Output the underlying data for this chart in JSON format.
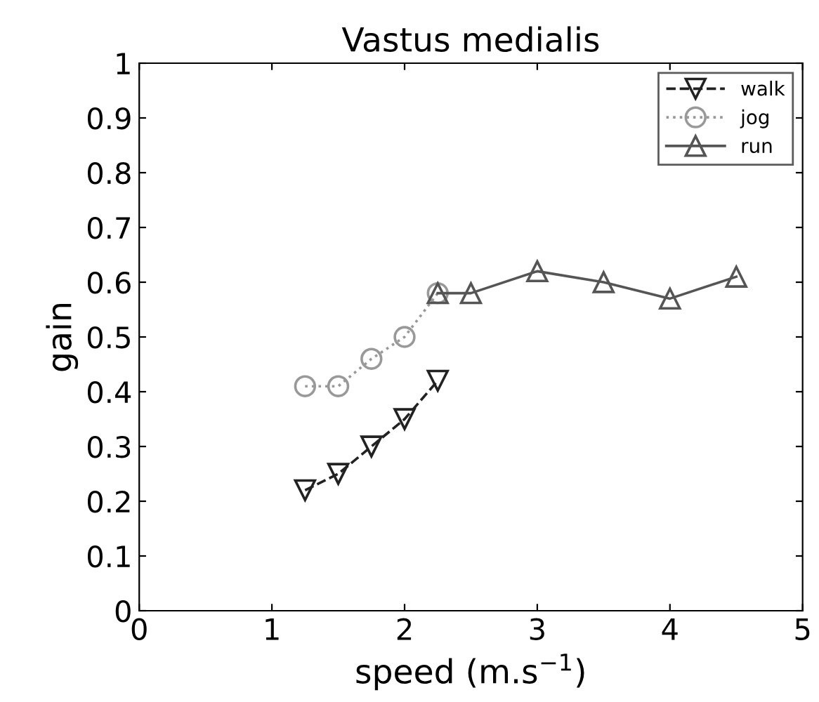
{
  "chart_data": {
    "type": "line",
    "title": "Vastus medialis",
    "xlabel": "speed (m.s$^{−1}$)",
    "ylabel": "gain",
    "xlim": [
      0,
      5
    ],
    "xticks": [
      0,
      1,
      2,
      3,
      4,
      5
    ],
    "ylim": [
      0,
      1
    ],
    "yticks": [
      0,
      0.1,
      0.2,
      0.3,
      0.4,
      0.5,
      0.6,
      0.7,
      0.8,
      0.9,
      1
    ],
    "grid": false,
    "legend": "top right",
    "series": [
      {
        "name": "walk",
        "color": "#222222",
        "marker": "triangle_down",
        "line_style": "dashed",
        "x": [
          1.25,
          1.5,
          1.75,
          2,
          2.25
        ],
        "values": [
          0.22,
          0.25,
          0.3,
          0.35,
          0.42
        ]
      },
      {
        "name": "jog",
        "color": "#999999",
        "marker": "circle",
        "line_style": "dotted",
        "x": [
          1.25,
          1.5,
          1.75,
          2,
          2.25
        ],
        "values": [
          0.41,
          0.41,
          0.46,
          0.5,
          0.58
        ]
      },
      {
        "name": "run",
        "color": "#555555",
        "marker": "triangle",
        "line_style": "solid",
        "x": [
          2.25,
          2.5,
          3,
          3.5,
          4,
          4.5
        ],
        "values": [
          0.58,
          0.58,
          0.62,
          0.6,
          0.57,
          0.61
        ]
      }
    ]
  }
}
